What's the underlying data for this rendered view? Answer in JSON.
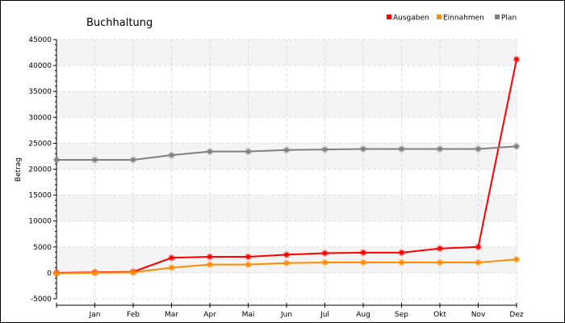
{
  "chart_data": {
    "type": "line",
    "title": "Buchhaltung",
    "xlabel": "",
    "ylabel": "Betrag",
    "categories": [
      "",
      "Jan",
      "Feb",
      "Mar",
      "Apr",
      "Mai",
      "Jun",
      "Jul",
      "Aug",
      "Sep",
      "Okt",
      "Nov",
      "Dez"
    ],
    "ylim": [
      -5000,
      45000
    ],
    "yticks": [
      -5000,
      0,
      5000,
      10000,
      15000,
      20000,
      25000,
      30000,
      35000,
      40000,
      45000
    ],
    "grid": true,
    "legend_position": "top-right",
    "series": [
      {
        "name": "Ausgaben",
        "color": "#ff0000",
        "values": [
          0,
          100,
          200,
          2900,
          3100,
          3100,
          3500,
          3800,
          3900,
          3900,
          4700,
          5000,
          41200
        ]
      },
      {
        "name": "Einnahmen",
        "color": "#ff8c00",
        "values": [
          -100,
          0,
          100,
          1000,
          1600,
          1600,
          1900,
          2000,
          2000,
          2000,
          2000,
          2000,
          2600
        ]
      },
      {
        "name": "Plan",
        "color": "#808080",
        "values": [
          21800,
          21800,
          21800,
          22700,
          23400,
          23400,
          23700,
          23800,
          23900,
          23900,
          23900,
          23900,
          24400
        ]
      }
    ]
  }
}
